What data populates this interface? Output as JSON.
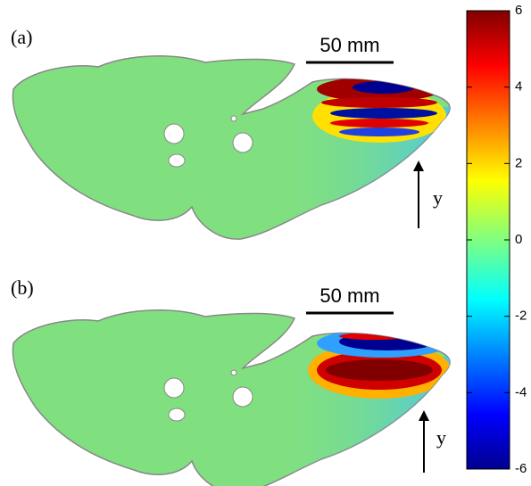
{
  "panels": [
    {
      "label": "(a)",
      "scale_bar": "50 mm",
      "axis_label": "y"
    },
    {
      "label": "(b)",
      "scale_bar": "50 mm",
      "axis_label": "y"
    }
  ],
  "colorbar": {
    "lim": [
      -6,
      6
    ],
    "ticks": [
      -6,
      -4,
      -2,
      0,
      2,
      4,
      6
    ]
  }
}
